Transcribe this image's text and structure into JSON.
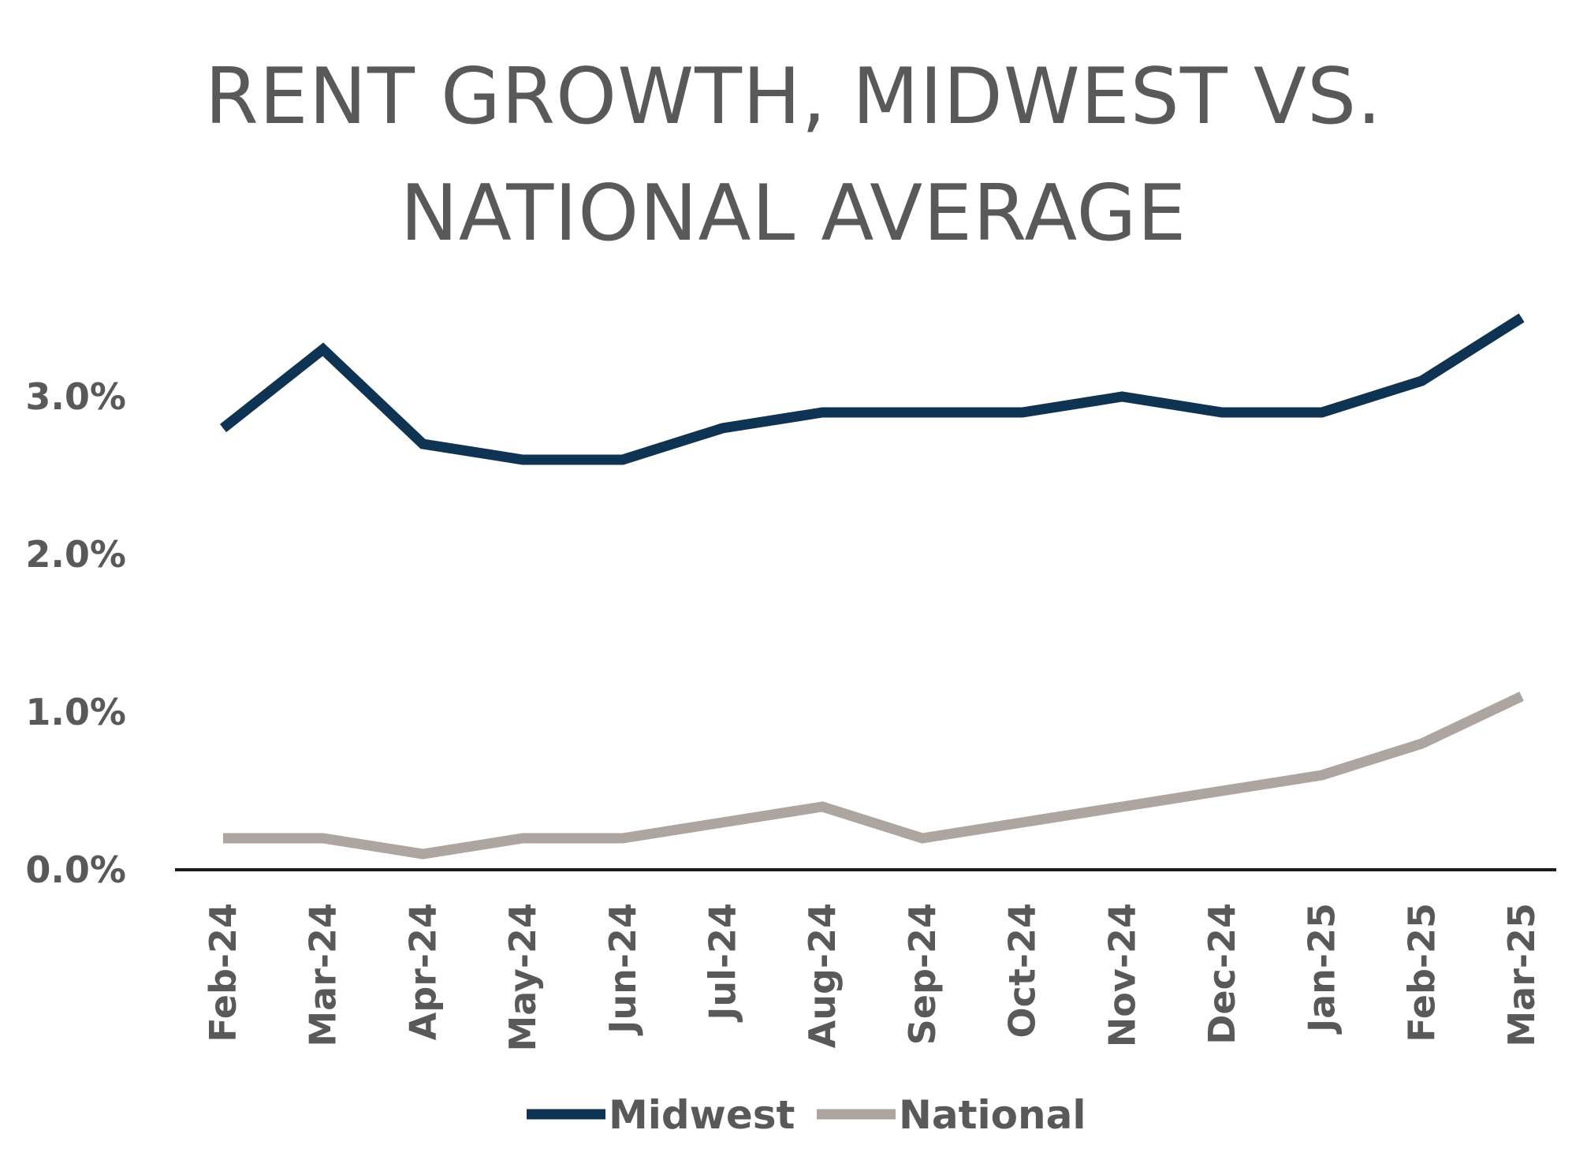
{
  "chart_data": {
    "type": "line",
    "title_lines": [
      "RENT GROWTH, MIDWEST VS.",
      "NATIONAL AVERAGE"
    ],
    "categories": [
      "Feb-24",
      "Mar-24",
      "Apr-24",
      "May-24",
      "Jun-24",
      "Jul-24",
      "Aug-24",
      "Sep-24",
      "Oct-24",
      "Nov-24",
      "Dec-24",
      "Jan-25",
      "Feb-25",
      "Mar-25"
    ],
    "series": [
      {
        "name": "Midwest",
        "color": "#0f3352",
        "values": [
          2.8,
          3.3,
          2.7,
          2.6,
          2.6,
          2.8,
          2.9,
          2.9,
          2.9,
          3.0,
          2.9,
          2.9,
          3.1,
          3.5
        ]
      },
      {
        "name": "National",
        "color": "#aea5a1",
        "values": [
          0.2,
          0.2,
          0.1,
          0.2,
          0.2,
          0.3,
          0.4,
          0.2,
          0.3,
          0.4,
          0.5,
          0.6,
          0.8,
          1.1
        ]
      }
    ],
    "yticks": [
      {
        "value": 0,
        "label": "0.0%"
      },
      {
        "value": 1,
        "label": "1.0%"
      },
      {
        "value": 2,
        "label": "2.0%"
      },
      {
        "value": 3,
        "label": "3.0%"
      }
    ],
    "ylim": [
      0,
      3.5
    ],
    "grid": false,
    "legend_position": "bottom",
    "axis_color": "#1a1a1a"
  }
}
